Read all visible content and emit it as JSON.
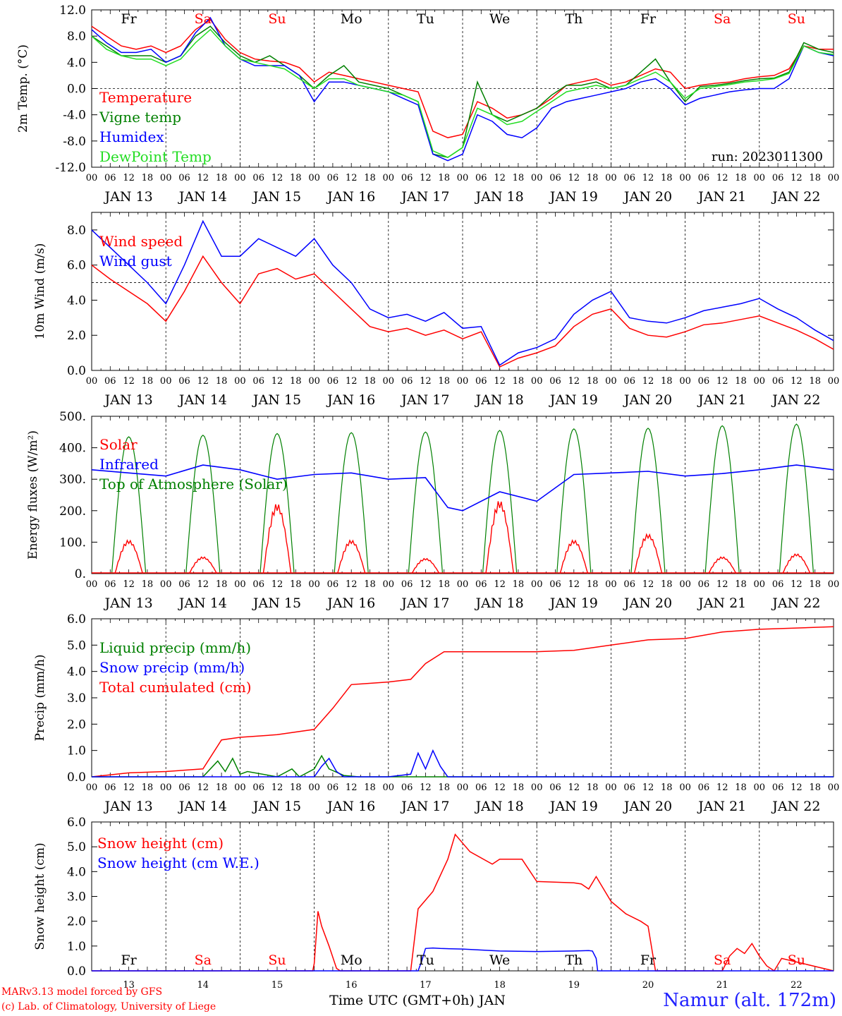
{
  "run_label": "run: 2023011300",
  "x_axis_title": "Time UTC (GMT+0h) JAN",
  "footer": {
    "model": "MARv3.13 model forced by GFS",
    "credit": "(c) Lab. of Climatology, University of Liege",
    "station": "Namur (alt. 172m)"
  },
  "days": [
    {
      "weekday": "Fr",
      "date": "JAN 13",
      "num": "13",
      "weekend": false
    },
    {
      "weekday": "Sa",
      "date": "JAN 14",
      "num": "14",
      "weekend": true
    },
    {
      "weekday": "Su",
      "date": "JAN 15",
      "num": "15",
      "weekend": true
    },
    {
      "weekday": "Mo",
      "date": "JAN 16",
      "num": "16",
      "weekend": false
    },
    {
      "weekday": "Tu",
      "date": "JAN 17",
      "num": "17",
      "weekend": false
    },
    {
      "weekday": "We",
      "date": "JAN 18",
      "num": "18",
      "weekend": false
    },
    {
      "weekday": "Th",
      "date": "JAN 19",
      "num": "19",
      "weekend": false
    },
    {
      "weekday": "Fr",
      "date": "JAN 20",
      "num": "20",
      "weekend": false
    },
    {
      "weekday": "Sa",
      "date": "JAN 21",
      "num": "21",
      "weekend": true
    },
    {
      "weekday": "Su",
      "date": "JAN 22",
      "num": "22",
      "weekend": true
    }
  ],
  "hour_ticks": [
    "00",
    "06",
    "12",
    "18"
  ],
  "colors": {
    "red": "#ff0000",
    "green": "#008000",
    "blue": "#0000ff",
    "lightgreen": "#22dd22",
    "weekday": "#000000",
    "weekend": "#ff0000"
  },
  "chart_data": [
    {
      "type": "line",
      "ylabel": "2m Temp. (°C)",
      "ylim": [
        -12,
        12
      ],
      "yticks": [
        "12.0",
        "8.0",
        "4.0",
        "0.0",
        "-4.0",
        "-8.0",
        "-12.0"
      ],
      "ytick_values": [
        12,
        8,
        4,
        0,
        -4,
        -8,
        -12
      ],
      "ref_line": 0,
      "legend": [
        "Temperature",
        "Vigne temp",
        "Humidex",
        "DewPoint Temp"
      ],
      "series": [
        {
          "name": "Temperature",
          "color": "red",
          "x": [
            0,
            0.2,
            0.4,
            0.6,
            0.8,
            1.0,
            1.2,
            1.4,
            1.6,
            1.8,
            2.0,
            2.2,
            2.4,
            2.6,
            2.8,
            3.0,
            3.2,
            3.4,
            3.6,
            3.8,
            4.0,
            4.2,
            4.4,
            4.6,
            4.8,
            5.0,
            5.2,
            5.4,
            5.6,
            5.8,
            6.0,
            6.2,
            6.4,
            6.6,
            6.8,
            7.0,
            7.2,
            7.4,
            7.6,
            7.8,
            8.0,
            8.2,
            8.4,
            8.6,
            8.8,
            9.0,
            9.2,
            9.4,
            9.6,
            9.8,
            10.0
          ],
          "y": [
            9.5,
            8,
            6.5,
            6,
            6.5,
            5.5,
            6.5,
            9,
            10.5,
            7.5,
            5.5,
            4.5,
            4.2,
            4,
            3.2,
            1,
            2.5,
            2,
            1.5,
            1,
            0.5,
            0,
            -0.5,
            -6.5,
            -7.5,
            -7,
            -2,
            -3,
            -4.5,
            -4,
            -3,
            -1.5,
            0.5,
            1,
            1.5,
            0.5,
            1,
            2,
            3,
            2.5,
            0,
            0.5,
            0.8,
            1,
            1.5,
            1.8,
            2,
            3,
            6.5,
            6,
            6
          ]
        },
        {
          "name": "Vigne temp",
          "color": "green",
          "x": [
            0,
            0.2,
            0.4,
            0.6,
            0.8,
            1.0,
            1.2,
            1.4,
            1.6,
            1.8,
            2.0,
            2.2,
            2.4,
            2.6,
            2.8,
            3.0,
            3.2,
            3.4,
            3.6,
            3.8,
            4.0,
            4.2,
            4.4,
            4.6,
            4.8,
            5.0,
            5.2,
            5.4,
            5.6,
            5.8,
            6.0,
            6.2,
            6.4,
            6.6,
            6.8,
            7.0,
            7.2,
            7.4,
            7.6,
            7.8,
            8.0,
            8.2,
            8.4,
            8.6,
            8.8,
            9.0,
            9.2,
            9.4,
            9.6,
            9.8,
            10.0
          ],
          "y": [
            8,
            6.5,
            5,
            5,
            5,
            4,
            5,
            8,
            9.5,
            7,
            5,
            4,
            5,
            3.5,
            2,
            0,
            2,
            3.5,
            1,
            0.5,
            0,
            -1,
            -2,
            -10,
            -10.5,
            -9,
            1,
            -4,
            -5,
            -4,
            -3,
            -1,
            0.5,
            0.5,
            1,
            0,
            0.5,
            2.5,
            4.5,
            1,
            -2,
            0.3,
            0.5,
            0.8,
            1.2,
            1.5,
            1.6,
            2.5,
            7,
            6,
            5.5
          ]
        },
        {
          "name": "Humidex",
          "color": "blue",
          "x": [
            0,
            0.2,
            0.4,
            0.6,
            0.8,
            1.0,
            1.2,
            1.4,
            1.6,
            1.8,
            2.0,
            2.2,
            2.4,
            2.6,
            2.8,
            3.0,
            3.2,
            3.4,
            3.6,
            3.8,
            4.0,
            4.2,
            4.4,
            4.6,
            4.8,
            5.0,
            5.2,
            5.4,
            5.6,
            5.8,
            6.0,
            6.2,
            6.4,
            6.6,
            6.8,
            7.0,
            7.2,
            7.4,
            7.6,
            7.8,
            8.0,
            8.2,
            8.4,
            8.6,
            8.8,
            9.0,
            9.2,
            9.4,
            9.6,
            9.8,
            10.0
          ],
          "y": [
            9,
            7,
            5.5,
            5.5,
            6,
            4,
            5,
            8.5,
            10.8,
            6.5,
            4.5,
            3.5,
            3.5,
            3.5,
            2,
            -2,
            1,
            1,
            0.5,
            0,
            -0.5,
            -1.5,
            -2.5,
            -10,
            -11,
            -10,
            -4,
            -5,
            -7,
            -7.5,
            -6,
            -3,
            -2,
            -1.5,
            -1,
            -0.5,
            0,
            1,
            1.5,
            0,
            -2.5,
            -1.5,
            -1,
            -0.5,
            -0.2,
            0,
            0,
            1.5,
            6.5,
            5.5,
            5
          ]
        },
        {
          "name": "DewPoint Temp",
          "color": "lightgreen",
          "x": [
            0,
            0.2,
            0.4,
            0.6,
            0.8,
            1.0,
            1.2,
            1.4,
            1.6,
            1.8,
            2.0,
            2.2,
            2.4,
            2.6,
            2.8,
            3.0,
            3.2,
            3.4,
            3.6,
            3.8,
            4.0,
            4.2,
            4.4,
            4.6,
            4.8,
            5.0,
            5.2,
            5.4,
            5.6,
            5.8,
            6.0,
            6.2,
            6.4,
            6.6,
            6.8,
            7.0,
            7.2,
            7.4,
            7.6,
            7.8,
            8.0,
            8.2,
            8.4,
            8.6,
            8.8,
            9.0,
            9.2,
            9.4,
            9.6,
            9.8,
            10.0
          ],
          "y": [
            8,
            6,
            5,
            4.5,
            4.5,
            3.5,
            4.5,
            7,
            9,
            6.5,
            4.5,
            4,
            3.5,
            3,
            1.5,
            0,
            1.5,
            1.5,
            0.5,
            0,
            -0.5,
            -1,
            -2,
            -9.5,
            -10.5,
            -9,
            -3,
            -4,
            -5.5,
            -5,
            -3.5,
            -2,
            -0.5,
            0,
            0.5,
            0,
            0.5,
            1.5,
            2.5,
            1,
            -1.5,
            0,
            0.3,
            0.6,
            1,
            1.2,
            1.5,
            2.3,
            6.5,
            5.5,
            5.2
          ]
        }
      ]
    },
    {
      "type": "line",
      "ylabel": "10m Wind (m/s)",
      "ylim": [
        0,
        9
      ],
      "yticks": [
        "8.0",
        "6.0",
        "4.0",
        "2.0",
        "0.0"
      ],
      "ytick_values": [
        8,
        6,
        4,
        2,
        0
      ],
      "ref_line": 5,
      "legend": [
        "Wind speed",
        "Wind gust"
      ],
      "series": [
        {
          "name": "Wind speed",
          "color": "red",
          "x": [
            0,
            0.25,
            0.5,
            0.75,
            1.0,
            1.25,
            1.5,
            1.75,
            2.0,
            2.25,
            2.5,
            2.75,
            3.0,
            3.25,
            3.5,
            3.75,
            4.0,
            4.25,
            4.5,
            4.75,
            5.0,
            5.25,
            5.5,
            5.75,
            6.0,
            6.25,
            6.5,
            6.75,
            7.0,
            7.25,
            7.5,
            7.75,
            8.0,
            8.25,
            8.5,
            8.75,
            9.0,
            9.25,
            9.5,
            9.75,
            10.0
          ],
          "y": [
            6,
            5.2,
            4.5,
            3.8,
            2.8,
            4.5,
            6.5,
            5,
            3.8,
            5.5,
            5.8,
            5.2,
            5.5,
            4.5,
            3.5,
            2.5,
            2.2,
            2.4,
            2,
            2.3,
            1.8,
            2.2,
            0.2,
            0.7,
            1.0,
            1.4,
            2.5,
            3.2,
            3.5,
            2.4,
            2.0,
            1.9,
            2.2,
            2.6,
            2.7,
            2.9,
            3.1,
            2.7,
            2.3,
            1.8,
            1.2
          ]
        },
        {
          "name": "Wind gust",
          "color": "blue",
          "x": [
            0,
            0.25,
            0.5,
            0.75,
            1.0,
            1.25,
            1.5,
            1.75,
            2.0,
            2.25,
            2.5,
            2.75,
            3.0,
            3.25,
            3.5,
            3.75,
            4.0,
            4.25,
            4.5,
            4.75,
            5.0,
            5.25,
            5.5,
            5.75,
            6.0,
            6.25,
            6.5,
            6.75,
            7.0,
            7.25,
            7.5,
            7.75,
            8.0,
            8.25,
            8.5,
            8.75,
            9.0,
            9.25,
            9.5,
            9.75,
            10.0
          ],
          "y": [
            8,
            7,
            6,
            5,
            3.8,
            6,
            8.5,
            6.5,
            6.5,
            7.5,
            7,
            6.5,
            7.5,
            6,
            5,
            3.5,
            3,
            3.2,
            2.8,
            3.3,
            2.4,
            2.5,
            0.3,
            1.0,
            1.3,
            1.8,
            3.2,
            4.0,
            4.5,
            3.0,
            2.8,
            2.7,
            3.0,
            3.4,
            3.6,
            3.8,
            4.1,
            3.5,
            3.0,
            2.3,
            1.7
          ]
        }
      ]
    },
    {
      "type": "line",
      "ylabel": "Energy fluxes (W/m²)",
      "ylim": [
        0,
        500
      ],
      "yticks": [
        "500.",
        "400.",
        "300.",
        "200.",
        "100.",
        "0."
      ],
      "ytick_values": [
        500,
        400,
        300,
        200,
        100,
        0
      ],
      "legend": [
        "Solar",
        "Infrared",
        "Top of Atmosphere (Solar)"
      ],
      "toa_peaks": [
        435,
        440,
        445,
        448,
        450,
        455,
        460,
        462,
        470,
        475
      ],
      "solar_peaks": [
        110,
        55,
        230,
        110,
        50,
        240,
        110,
        130,
        55,
        65
      ],
      "infrared": {
        "x": [
          0,
          0.5,
          1.0,
          1.5,
          2.0,
          2.5,
          3.0,
          3.5,
          4.0,
          4.5,
          4.8,
          5.0,
          5.5,
          6.0,
          6.5,
          7.0,
          7.5,
          8.0,
          8.5,
          9.0,
          9.5,
          10.0
        ],
        "y": [
          330,
          320,
          310,
          345,
          330,
          300,
          315,
          320,
          300,
          305,
          210,
          200,
          260,
          230,
          315,
          320,
          325,
          310,
          318,
          330,
          345,
          330
        ]
      }
    },
    {
      "type": "line",
      "ylabel": "Precip (mm/h)",
      "ylim": [
        0,
        6
      ],
      "yticks": [
        "6.0",
        "5.0",
        "4.0",
        "3.0",
        "2.0",
        "1.0",
        "0.0"
      ],
      "ytick_values": [
        6,
        5,
        4,
        3,
        2,
        1,
        0
      ],
      "legend": [
        "Liquid precip (mm/h)",
        "Snow precip (mm/h)",
        "Total cumulated (cm)"
      ],
      "series": [
        {
          "name": "Total cumulated (cm)",
          "color": "red",
          "x": [
            0,
            0.5,
            1.0,
            1.5,
            1.75,
            2.0,
            2.5,
            3.0,
            3.25,
            3.5,
            4.0,
            4.3,
            4.5,
            4.75,
            5.0,
            6.0,
            6.5,
            7.0,
            7.5,
            8.0,
            8.5,
            9.0,
            9.5,
            10.0
          ],
          "y": [
            0,
            0.15,
            0.2,
            0.3,
            1.4,
            1.5,
            1.6,
            1.8,
            2.6,
            3.5,
            3.6,
            3.7,
            4.3,
            4.75,
            4.75,
            4.75,
            4.8,
            5.0,
            5.2,
            5.25,
            5.5,
            5.6,
            5.65,
            5.7
          ]
        },
        {
          "name": "Liquid precip (mm/h)",
          "color": "green",
          "x": [
            0,
            1.5,
            1.7,
            1.8,
            1.9,
            2.0,
            2.1,
            2.5,
            2.7,
            2.8,
            3.0,
            3.1,
            3.2,
            3.4,
            3.6,
            10.0
          ],
          "y": [
            0,
            0,
            0.6,
            0.2,
            0.7,
            0.1,
            0.2,
            0,
            0.3,
            0,
            0.3,
            0.8,
            0.3,
            0.05,
            0,
            0
          ]
        },
        {
          "name": "Snow precip (mm/h)",
          "color": "blue",
          "x": [
            0,
            3.0,
            3.1,
            3.2,
            3.3,
            3.4,
            4.0,
            4.3,
            4.4,
            4.5,
            4.6,
            4.7,
            4.8,
            10.0
          ],
          "y": [
            0,
            0,
            0.4,
            0.7,
            0.2,
            0,
            0,
            0.1,
            0.9,
            0.3,
            1.0,
            0.4,
            0,
            0
          ]
        }
      ]
    },
    {
      "type": "line",
      "ylabel": "Snow height (cm)",
      "ylim": [
        0,
        6
      ],
      "yticks": [
        "6.0",
        "5.0",
        "4.0",
        "3.0",
        "2.0",
        "1.0",
        "0.0"
      ],
      "ytick_values": [
        6,
        5,
        4,
        3,
        2,
        1,
        0
      ],
      "legend": [
        "Snow height (cm)",
        "Snow height (cm W.E.)"
      ],
      "series": [
        {
          "name": "Snow height (cm)",
          "color": "red",
          "x": [
            0,
            2.98,
            3.0,
            3.05,
            3.1,
            3.2,
            3.3,
            3.35,
            4.3,
            4.4,
            4.6,
            4.8,
            4.9,
            5.1,
            5.4,
            5.5,
            5.8,
            6.0,
            6.5,
            6.6,
            6.7,
            6.8,
            7.0,
            7.2,
            7.4,
            7.5,
            7.6,
            8.5,
            8.6,
            8.7,
            8.8,
            8.9,
            9.0,
            9.1,
            9.2,
            9.3,
            10.0
          ],
          "y": [
            0,
            0,
            0.3,
            2.4,
            1.8,
            1.0,
            0.1,
            0,
            0,
            2.5,
            3.2,
            4.5,
            5.5,
            4.8,
            4.3,
            4.5,
            4.5,
            3.6,
            3.55,
            3.5,
            3.3,
            3.8,
            2.8,
            2.3,
            2.0,
            1.8,
            0,
            0,
            0.6,
            0.9,
            0.7,
            1.1,
            0.6,
            0.2,
            0,
            0.5,
            0
          ]
        },
        {
          "name": "Snow height (cm W.E.)",
          "color": "blue",
          "x": [
            0,
            4.4,
            4.45,
            4.5,
            4.6,
            4.7,
            5.0,
            5.5,
            6.0,
            6.5,
            6.7,
            6.75,
            6.8,
            6.82,
            10.0
          ],
          "y": [
            0,
            0,
            0.4,
            0.9,
            0.92,
            0.9,
            0.88,
            0.8,
            0.78,
            0.8,
            0.82,
            0.8,
            0.5,
            0,
            0
          ]
        }
      ]
    }
  ]
}
